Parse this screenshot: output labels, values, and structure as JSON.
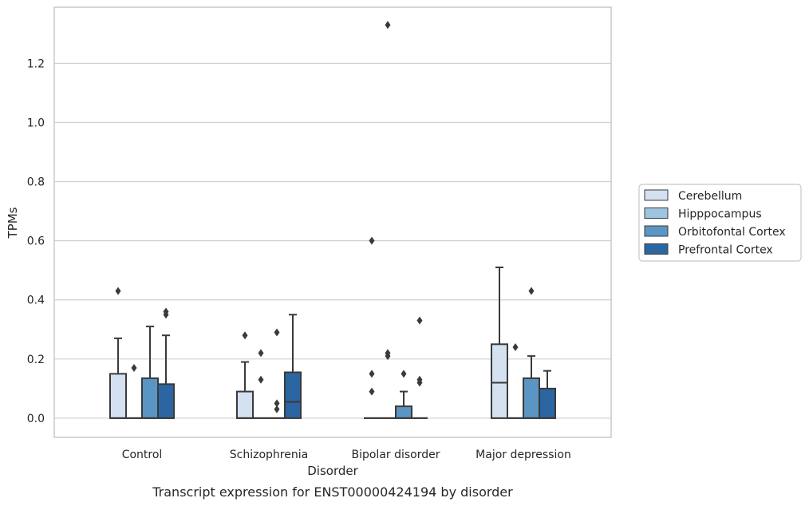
{
  "caption": "Transcript expression for ENST00000424194 by disorder",
  "chart_data": {
    "type": "box",
    "title": "",
    "xlabel": "Disorder",
    "ylabel": "TPMs",
    "ylim": [
      -0.065,
      1.39
    ],
    "yticks": [
      0.0,
      0.2,
      0.4,
      0.6,
      0.8,
      1.0,
      1.2
    ],
    "ytick_labels": [
      "0.0",
      "0.2",
      "0.4",
      "0.6",
      "0.8",
      "1.0",
      "1.2"
    ],
    "categories": [
      "Control",
      "Schizophrenia",
      "Bipolar disorder",
      "Major depression"
    ],
    "grid": "horizontal",
    "legend_position": "right",
    "series": [
      {
        "name": "Cerebellum",
        "color": "#d3e1f0",
        "boxes": [
          {
            "q1": 0.0,
            "median": 0.0,
            "q3": 0.15,
            "whisker_low": 0.0,
            "whisker_high": 0.27,
            "outliers": [
              0.43
            ]
          },
          {
            "q1": 0.0,
            "median": 0.0,
            "q3": 0.09,
            "whisker_low": 0.0,
            "whisker_high": 0.19,
            "outliers": [
              0.28
            ]
          },
          {
            "q1": 0.0,
            "median": 0.0,
            "q3": 0.0,
            "whisker_low": 0.0,
            "whisker_high": 0.0,
            "outliers": [
              0.09,
              0.15,
              0.6
            ]
          },
          {
            "q1": 0.0,
            "median": 0.12,
            "q3": 0.25,
            "whisker_low": 0.0,
            "whisker_high": 0.51,
            "outliers": []
          }
        ]
      },
      {
        "name": "Hipppocampus",
        "color": "#9ec4df",
        "boxes": [
          {
            "q1": 0.0,
            "median": 0.0,
            "q3": 0.0,
            "whisker_low": 0.0,
            "whisker_high": 0.0,
            "outliers": [
              0.17
            ]
          },
          {
            "q1": 0.0,
            "median": 0.0,
            "q3": 0.0,
            "whisker_low": 0.0,
            "whisker_high": 0.0,
            "outliers": [
              0.13,
              0.22
            ]
          },
          {
            "q1": 0.0,
            "median": 0.0,
            "q3": 0.0,
            "whisker_low": 0.0,
            "whisker_high": 0.0,
            "outliers": [
              0.21,
              0.22,
              1.33
            ]
          },
          {
            "q1": 0.0,
            "median": 0.0,
            "q3": 0.0,
            "whisker_low": 0.0,
            "whisker_high": 0.0,
            "outliers": [
              0.24
            ]
          }
        ]
      },
      {
        "name": "Orbitofontal Cortex",
        "color": "#5b95c3",
        "boxes": [
          {
            "q1": 0.0,
            "median": 0.0,
            "q3": 0.135,
            "whisker_low": 0.0,
            "whisker_high": 0.31,
            "outliers": []
          },
          {
            "q1": 0.0,
            "median": 0.0,
            "q3": 0.0,
            "whisker_low": 0.0,
            "whisker_high": 0.0,
            "outliers": [
              0.03,
              0.05,
              0.29
            ]
          },
          {
            "q1": 0.0,
            "median": 0.0,
            "q3": 0.04,
            "whisker_low": 0.0,
            "whisker_high": 0.09,
            "outliers": [
              0.15
            ]
          },
          {
            "q1": 0.0,
            "median": 0.0,
            "q3": 0.135,
            "whisker_low": 0.0,
            "whisker_high": 0.21,
            "outliers": [
              0.43
            ]
          }
        ]
      },
      {
        "name": "Prefrontal Cortex",
        "color": "#2b66a3",
        "boxes": [
          {
            "q1": 0.0,
            "median": 0.0,
            "q3": 0.115,
            "whisker_low": 0.0,
            "whisker_high": 0.28,
            "outliers": [
              0.35,
              0.36
            ]
          },
          {
            "q1": 0.0,
            "median": 0.055,
            "q3": 0.155,
            "whisker_low": 0.0,
            "whisker_high": 0.35,
            "outliers": []
          },
          {
            "q1": 0.0,
            "median": 0.0,
            "q3": 0.0,
            "whisker_low": 0.0,
            "whisker_high": 0.0,
            "outliers": [
              0.12,
              0.13,
              0.33
            ]
          },
          {
            "q1": 0.0,
            "median": 0.0,
            "q3": 0.1,
            "whisker_low": 0.0,
            "whisker_high": 0.16,
            "outliers": []
          }
        ]
      }
    ],
    "colors": {
      "box_edge": "#3a3a3a",
      "grid": "#d0d0d0",
      "frame": "#c8c8c8",
      "text": "#262626"
    }
  }
}
